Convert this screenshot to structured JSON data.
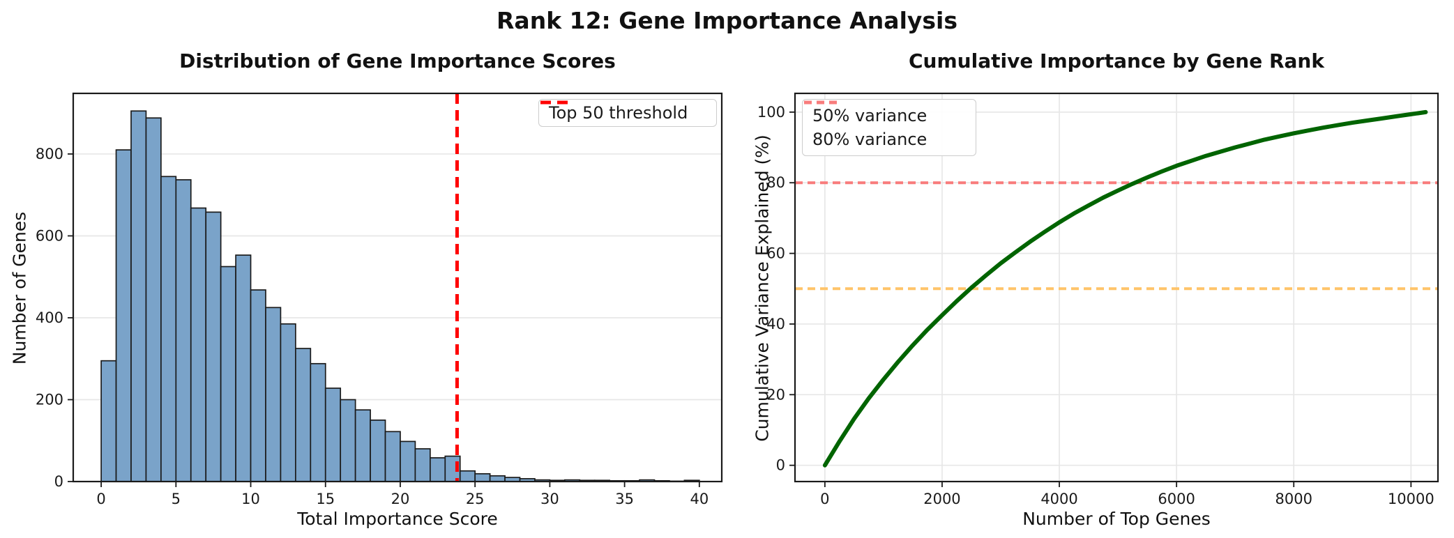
{
  "figure": {
    "suptitle": "Rank 12: Gene Importance Analysis",
    "background": "#ffffff"
  },
  "chart_data": [
    {
      "type": "bar",
      "title": "Distribution of Gene Importance Scores",
      "xlabel": "Total Importance Score",
      "ylabel": "Number of Genes",
      "bin_start": 0,
      "bin_width": 1,
      "values": [
        295,
        810,
        905,
        888,
        745,
        737,
        668,
        658,
        525,
        553,
        468,
        425,
        385,
        325,
        288,
        228,
        200,
        175,
        150,
        122,
        98,
        80,
        58,
        62,
        26,
        19,
        14,
        10,
        7,
        4,
        3,
        4,
        3,
        3,
        2,
        2,
        4,
        2,
        1,
        3
      ],
      "xticks": [
        0,
        5,
        10,
        15,
        20,
        25,
        30,
        35,
        40
      ],
      "yticks": [
        0,
        200,
        400,
        600,
        800
      ],
      "xlim": [
        -1.87,
        41.5
      ],
      "ylim": [
        0,
        948
      ],
      "grid": "y",
      "bar_color": "#7aa3c9",
      "bar_edge_color": "#1b1b1b",
      "threshold_line": {
        "x": 23.8,
        "color": "#ff0000",
        "label": "Top 50 threshold"
      },
      "legend_position": "top-right"
    },
    {
      "type": "line",
      "title": "Cumulative Importance by Gene Rank",
      "xlabel": "Number of Top Genes",
      "ylabel": "Cumulative Variance Explained (%)",
      "series": [
        {
          "name": "cumulative-importance-curve",
          "color": "#006400",
          "x": [
            0,
            250,
            500,
            750,
            1000,
            1250,
            1500,
            1750,
            2000,
            2250,
            2500,
            2750,
            3000,
            3250,
            3500,
            3750,
            4000,
            4250,
            4500,
            4750,
            5000,
            5250,
            5500,
            5750,
            6000,
            6250,
            6500,
            6750,
            7000,
            7250,
            7500,
            7750,
            8000,
            8250,
            8500,
            8750,
            9000,
            9250,
            9500,
            9750,
            10000,
            10250
          ],
          "y": [
            0,
            6.8,
            13.2,
            19.0,
            24.3,
            29.3,
            34.0,
            38.4,
            42.5,
            46.5,
            50.3,
            53.8,
            57.2,
            60.3,
            63.3,
            66.1,
            68.8,
            71.3,
            73.6,
            75.8,
            77.8,
            79.7,
            81.5,
            83.2,
            84.8,
            86.2,
            87.6,
            88.8,
            90.0,
            91.1,
            92.2,
            93.1,
            94.0,
            94.8,
            95.6,
            96.3,
            97.0,
            97.6,
            98.2,
            98.8,
            99.4,
            100.0
          ]
        }
      ],
      "hlines": [
        {
          "y": 50,
          "color": "#ffc469",
          "label": "50% variance"
        },
        {
          "y": 80,
          "color": "#f87c7c",
          "label": "80% variance"
        }
      ],
      "xticks": [
        0,
        2000,
        4000,
        6000,
        8000,
        10000
      ],
      "yticks": [
        0,
        20,
        40,
        60,
        80,
        100
      ],
      "xlim": [
        -510,
        10460
      ],
      "ylim": [
        -4.6,
        105.3
      ],
      "grid": "both",
      "legend_position": "top-left"
    }
  ]
}
